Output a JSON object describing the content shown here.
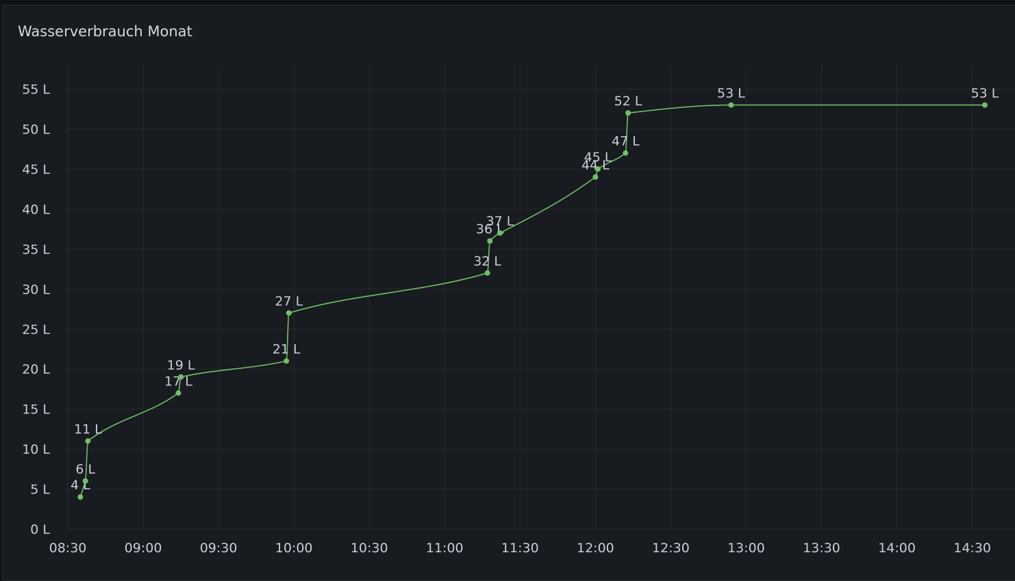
{
  "chart_data": {
    "type": "line",
    "title": "Wasserverbrauch Monat",
    "x": [
      "08:35",
      "08:37",
      "08:38",
      "09:14",
      "09:15",
      "09:57",
      "09:58",
      "11:17",
      "11:18",
      "11:22",
      "12:00",
      "12:01",
      "12:12",
      "12:13",
      "12:54",
      "14:35"
    ],
    "series": [
      {
        "name": "Wasserverbrauch",
        "color": "#73bf69",
        "values": [
          4,
          6,
          11,
          17,
          19,
          21,
          27,
          32,
          36,
          37,
          44,
          45,
          47,
          52,
          53,
          53
        ],
        "value_labels": [
          "4 L",
          "6 L",
          "11 L",
          "17 L",
          "19 L",
          "21 L",
          "27 L",
          "32 L",
          "36 L",
          "37 L",
          "44 L",
          "45 L",
          "47 L",
          "52 L",
          "53 L",
          "53 L"
        ]
      }
    ],
    "xlim": [
      "08:30",
      "14:47"
    ],
    "xticks": [
      "08:30",
      "09:00",
      "09:30",
      "10:00",
      "10:30",
      "11:00",
      "11:30",
      "12:00",
      "12:30",
      "13:00",
      "13:30",
      "14:00",
      "14:30"
    ],
    "ylim": [
      0,
      58
    ],
    "yticks": [
      {
        "value": 0,
        "label": "0 L"
      },
      {
        "value": 5,
        "label": "5 L"
      },
      {
        "value": 10,
        "label": "10 L"
      },
      {
        "value": 15,
        "label": "15 L"
      },
      {
        "value": 20,
        "label": "20 L"
      },
      {
        "value": 25,
        "label": "25 L"
      },
      {
        "value": 30,
        "label": "30 L"
      },
      {
        "value": 35,
        "label": "35 L"
      },
      {
        "value": 40,
        "label": "40 L"
      },
      {
        "value": 45,
        "label": "45 L"
      },
      {
        "value": 50,
        "label": "50 L"
      },
      {
        "value": 55,
        "label": "55 L"
      }
    ],
    "grid": true
  }
}
